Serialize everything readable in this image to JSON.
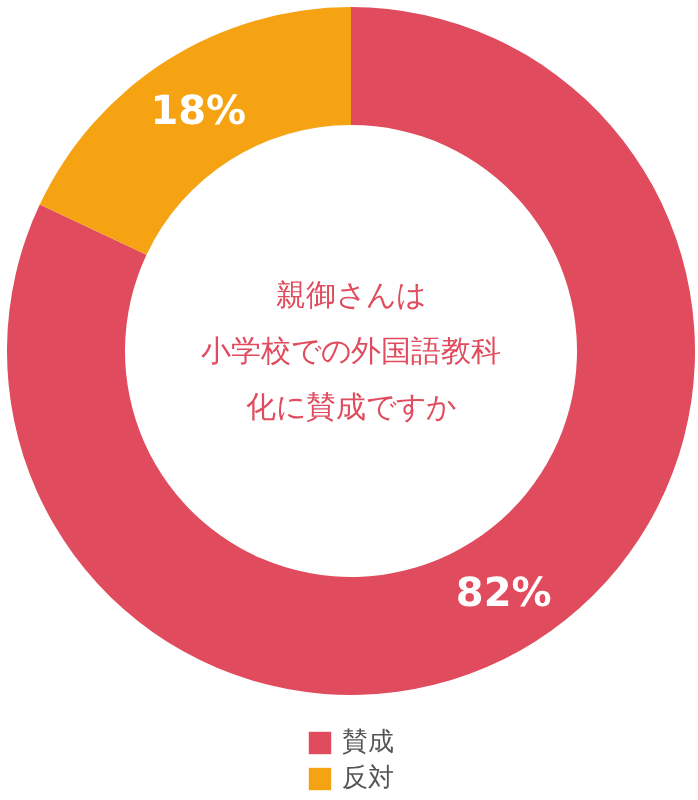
{
  "chart_data": {
    "type": "donut",
    "title": "親御さんは",
    "subtitle": "小学校での外国語教科",
    "annotations": [
      "化に賛成ですか"
    ],
    "categories": [
      "賛成",
      "反対"
    ],
    "values": [
      82,
      18
    ],
    "value_labels": [
      "82%",
      "18%"
    ],
    "colors": [
      "#e04b5d",
      "#f6a313"
    ],
    "legend": "bottom"
  }
}
